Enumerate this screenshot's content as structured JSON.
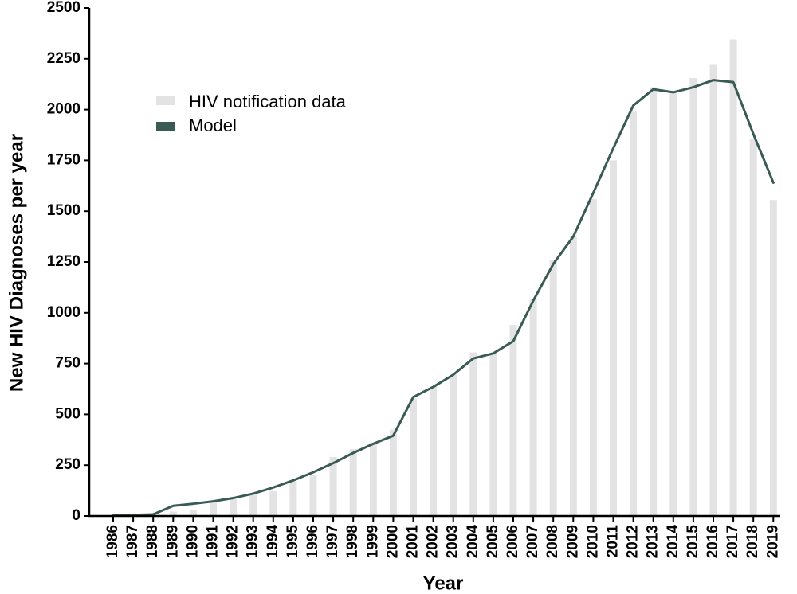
{
  "chart_data": {
    "type": "bar",
    "title": "",
    "xlabel": "Year",
    "ylabel": "New HIV Diagnoses per year",
    "ylim": [
      0,
      2500
    ],
    "yticks": [
      0,
      250,
      500,
      750,
      1000,
      1250,
      1500,
      1750,
      2000,
      2250,
      2500
    ],
    "grid": false,
    "legend_position": "upper-left",
    "categories": [
      "1986",
      "1987",
      "1988",
      "1989",
      "1990",
      "1991",
      "1992",
      "1993",
      "1994",
      "1995",
      "1996",
      "1997",
      "1998",
      "1999",
      "2000",
      "2001",
      "2002",
      "2003",
      "2004",
      "2005",
      "2006",
      "2007",
      "2008",
      "2009",
      "2010",
      "2011",
      "2012",
      "2013",
      "2014",
      "2015",
      "2016",
      "2017",
      "2018",
      "2019"
    ],
    "series": [
      {
        "name": "HIV notification data",
        "kind": "bar",
        "color": "#e3e3e3",
        "values": [
          5,
          8,
          12,
          22,
          28,
          70,
          82,
          105,
          122,
          170,
          200,
          290,
          328,
          362,
          425,
          578,
          638,
          695,
          805,
          798,
          940,
          1070,
          1260,
          1375,
          1560,
          1750,
          1990,
          2110,
          2080,
          2155,
          2220,
          2345,
          1855,
          1555
        ]
      },
      {
        "name": "Model",
        "kind": "line",
        "color": "#3a5a56",
        "values": [
          2,
          5,
          8,
          50,
          60,
          72,
          88,
          110,
          140,
          175,
          215,
          260,
          310,
          355,
          395,
          585,
          635,
          695,
          775,
          800,
          860,
          1060,
          1240,
          1375,
          1590,
          1810,
          2020,
          2100,
          2085,
          2110,
          2145,
          2135,
          1880,
          1640
        ]
      }
    ]
  }
}
